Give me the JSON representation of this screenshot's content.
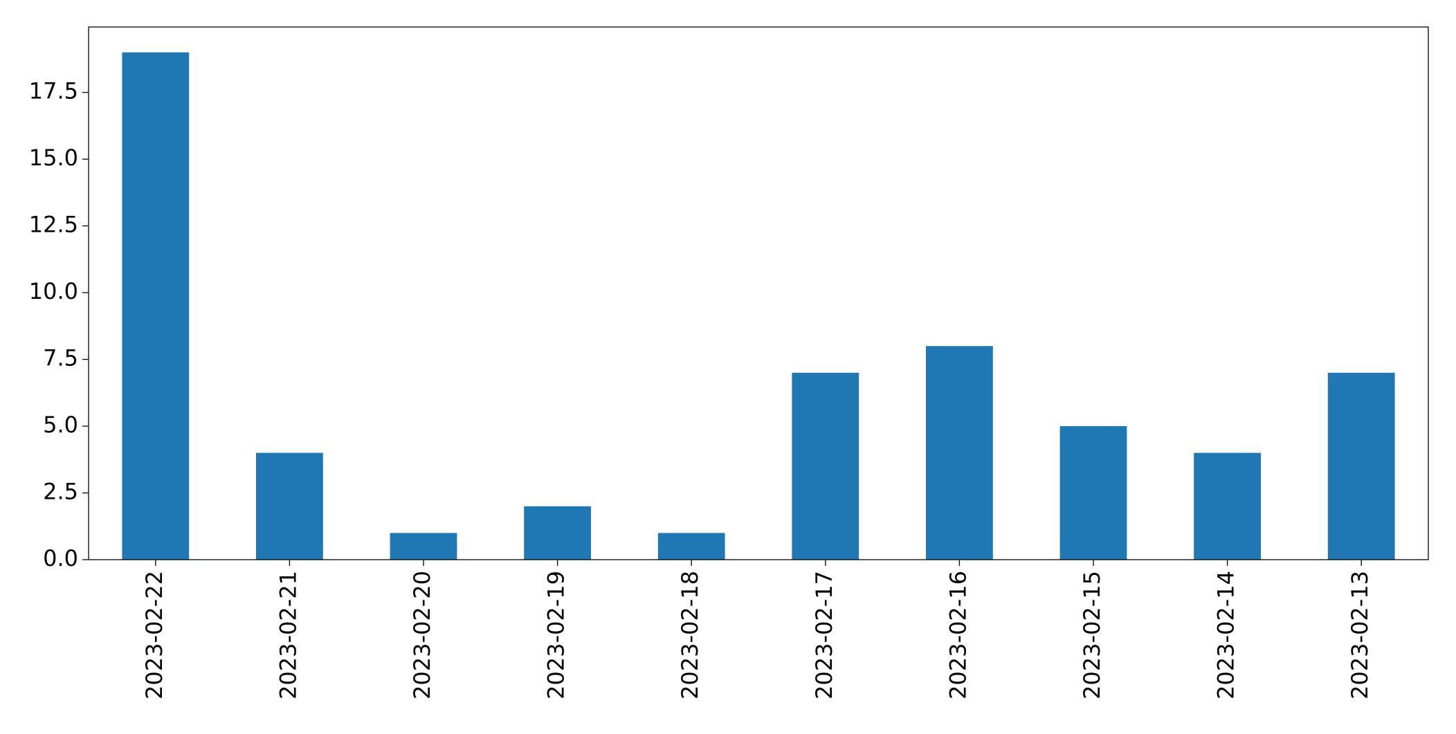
{
  "chart_data": {
    "type": "bar",
    "categories": [
      "2023-02-22",
      "2023-02-21",
      "2023-02-20",
      "2023-02-19",
      "2023-02-18",
      "2023-02-17",
      "2023-02-16",
      "2023-02-15",
      "2023-02-14",
      "2023-02-13"
    ],
    "values": [
      19,
      4,
      1,
      2,
      1,
      7,
      8,
      5,
      4,
      7
    ],
    "color": "#1f77b4",
    "ylim": [
      0,
      19.95
    ],
    "yticks": [
      {
        "value": 0,
        "label": "0.0"
      },
      {
        "value": 2.5,
        "label": "2.5"
      },
      {
        "value": 5,
        "label": "5.0"
      },
      {
        "value": 7.5,
        "label": "7.5"
      },
      {
        "value": 10,
        "label": "10.0"
      },
      {
        "value": 12.5,
        "label": "12.5"
      },
      {
        "value": 15,
        "label": "15.0"
      },
      {
        "value": 17.5,
        "label": "17.5"
      }
    ],
    "grid": false
  }
}
